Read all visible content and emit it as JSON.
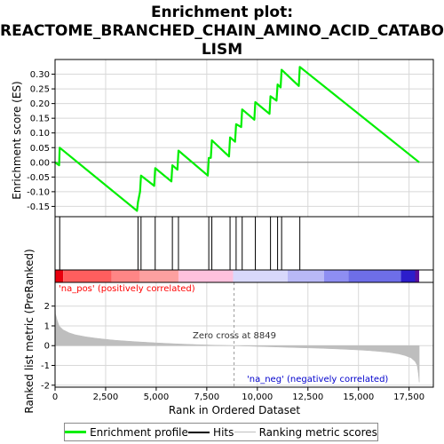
{
  "title_line1": "Enrichment plot:",
  "title_line2": "REACTOME_BRANCHED_CHAIN_AMINO_ACID_CATABO",
  "title_line3": "LISM",
  "colors": {
    "es_line": "#00ee00",
    "hits": "#000000",
    "metric_fill": "#bebebe",
    "zero_line": "#9a9a9a",
    "pos_label": "#ff0000",
    "neg_label": "#0000cd"
  },
  "chart_data": [
    {
      "type": "line",
      "ylabel": "Enrichment score (ES)",
      "xlim": [
        0,
        18700
      ],
      "ylim": [
        -0.185,
        0.35
      ],
      "yticks": [
        -0.15,
        -0.1,
        -0.05,
        0.0,
        0.05,
        0.1,
        0.15,
        0.2,
        0.25,
        0.3
      ],
      "ytick_labels": [
        "-0.15",
        "-0.10",
        "-0.05",
        "0.00",
        "0.05",
        "0.10",
        "0.15",
        "0.20",
        "0.25",
        "0.30"
      ],
      "grid": true,
      "series": [
        {
          "name": "Enrichment profile",
          "x": [
            0,
            200,
            230,
            4050,
            4100,
            4200,
            4250,
            4900,
            4950,
            5750,
            5800,
            6050,
            6100,
            7550,
            7600,
            7700,
            7750,
            8600,
            8650,
            8900,
            8950,
            9200,
            9250,
            9850,
            9900,
            10600,
            10650,
            10950,
            11000,
            11150,
            11200,
            12050,
            12100,
            18000
          ],
          "y": [
            0.0,
            -0.01,
            0.05,
            -0.165,
            -0.135,
            -0.1,
            -0.045,
            -0.08,
            -0.02,
            -0.065,
            -0.01,
            -0.025,
            0.04,
            -0.045,
            0.015,
            0.015,
            0.075,
            0.02,
            0.085,
            0.07,
            0.13,
            0.12,
            0.18,
            0.145,
            0.205,
            0.165,
            0.225,
            0.21,
            0.265,
            0.255,
            0.315,
            0.26,
            0.325,
            0.0
          ]
        }
      ]
    },
    {
      "type": "hits",
      "hits": [
        230,
        4100,
        4250,
        4950,
        5800,
        6100,
        7600,
        7750,
        8650,
        8950,
        9250,
        9900,
        10650,
        11000,
        11200,
        12100
      ]
    },
    {
      "type": "heatmap",
      "bands": [
        {
          "x0": 0,
          "x1": 400,
          "color": "#e8000e"
        },
        {
          "x0": 400,
          "x1": 2800,
          "color": "#fe5e5e"
        },
        {
          "x0": 2800,
          "x1": 4200,
          "color": "#fe8686"
        },
        {
          "x0": 4200,
          "x1": 6100,
          "color": "#fda0a0"
        },
        {
          "x0": 6100,
          "x1": 8800,
          "color": "#fec1dd"
        },
        {
          "x0": 8800,
          "x1": 11500,
          "color": "#d8d8fb"
        },
        {
          "x0": 11500,
          "x1": 13300,
          "color": "#b8b8f6"
        },
        {
          "x0": 13300,
          "x1": 14500,
          "color": "#8e8ef2"
        },
        {
          "x0": 14500,
          "x1": 17100,
          "color": "#6e6ee8"
        },
        {
          "x0": 17100,
          "x1": 17800,
          "color": "#2c1dcb"
        },
        {
          "x0": 17800,
          "x1": 18000,
          "color": "#5a0f98"
        }
      ]
    },
    {
      "type": "area",
      "xlabel": "Rank in Ordered Dataset",
      "ylabel": "Ranked list metric (PreRanked)",
      "xlim": [
        0,
        18700
      ],
      "ylim": [
        -2.1,
        3.2
      ],
      "xticks": [
        0,
        2500,
        5000,
        7500,
        10000,
        12500,
        15000,
        17500
      ],
      "xtick_labels": [
        "0",
        "2,500",
        "5,000",
        "7,500",
        "10,000",
        "12,500",
        "15,000",
        "17,500"
      ],
      "yticks": [
        -2,
        -1,
        0,
        1,
        2
      ],
      "ytick_labels": [
        "-2",
        "-1",
        "0",
        "1",
        "2"
      ],
      "grid": true,
      "zero_cross": 8849,
      "series": [
        {
          "name": "Ranking metric scores",
          "x": [
            0,
            20,
            100,
            200,
            400,
            700,
            1000,
            1500,
            2000,
            2500,
            3000,
            4000,
            5000,
            6000,
            7000,
            8000,
            8849,
            10000,
            11000,
            12000,
            13000,
            14000,
            15000,
            15500,
            16000,
            16500,
            17000,
            17300,
            17600,
            17800,
            17900,
            17960,
            18000
          ],
          "y": [
            2.5,
            1.6,
            1.3,
            1.0,
            0.8,
            0.65,
            0.55,
            0.45,
            0.38,
            0.32,
            0.27,
            0.2,
            0.14,
            0.09,
            0.05,
            0.02,
            0.0,
            -0.04,
            -0.07,
            -0.1,
            -0.13,
            -0.17,
            -0.22,
            -0.25,
            -0.29,
            -0.34,
            -0.42,
            -0.5,
            -0.62,
            -0.8,
            -1.0,
            -1.4,
            -1.85
          ]
        }
      ]
    }
  ],
  "annotations": {
    "pos_label": "'na_pos' (positively correlated)",
    "neg_label": "'na_neg' (negatively correlated)",
    "zero_cross_label": "Zero cross at 8849"
  },
  "legend": {
    "items": [
      {
        "label": "Enrichment profile",
        "color": "#00ee00"
      },
      {
        "label": "Hits",
        "color": "#000000"
      },
      {
        "label": "Ranking metric scores",
        "color": "#bebebe"
      }
    ]
  }
}
